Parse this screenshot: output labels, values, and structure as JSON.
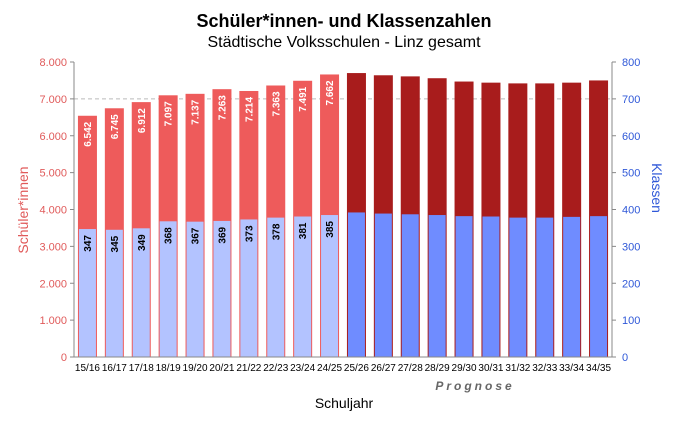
{
  "chart_data": {
    "type": "bar",
    "title": "Schüler*innen- und Klassenzahlen",
    "subtitle": "Städtische Volksschulen - Linz gesamt",
    "xlabel": "Schuljahr",
    "ylabel_left": "Schüler*innen",
    "ylabel_right": "Klassen",
    "annotation": "Prognose",
    "ylim_left": [
      0,
      8000
    ],
    "ylim_right": [
      0,
      800
    ],
    "left_ticks": [
      "0",
      "1.000",
      "2.000",
      "3.000",
      "4.000",
      "5.000",
      "6.000",
      "7.000",
      "8.000"
    ],
    "right_ticks": [
      "0",
      "100",
      "200",
      "300",
      "400",
      "500",
      "600",
      "700",
      "800"
    ],
    "grid": "dashed horizontal at 7.000",
    "categories": [
      "15/16",
      "16/17",
      "17/18",
      "18/19",
      "19/20",
      "20/21",
      "21/22",
      "22/23",
      "23/24",
      "24/25",
      "25/26",
      "26/27",
      "27/28",
      "28/29",
      "29/30",
      "30/31",
      "31/32",
      "32/33",
      "33/34",
      "34/35"
    ],
    "forecast_start_index": 10,
    "series": [
      {
        "axis": "left",
        "values": [
          6542,
          6745,
          6912,
          7097,
          7137,
          7263,
          7214,
          7363,
          7491,
          7662,
          7700,
          7640,
          7610,
          7560,
          7470,
          7440,
          7420,
          7420,
          7440,
          7500
        ],
        "labels": [
          "6.542",
          "6.745",
          "6.912",
          "7.097",
          "7.137",
          "7.263",
          "7.214",
          "7.363",
          "7.491",
          "7.662",
          "",
          "",
          "",
          "",
          "",
          "",
          "",
          "",
          "",
          ""
        ]
      },
      {
        "axis": "right",
        "values": [
          347,
          345,
          349,
          368,
          367,
          369,
          373,
          378,
          381,
          385,
          392,
          389,
          387,
          385,
          382,
          381,
          378,
          378,
          380,
          382
        ],
        "labels": [
          "347",
          "345",
          "349",
          "368",
          "367",
          "369",
          "373",
          "378",
          "381",
          "385",
          "",
          "",
          "",
          "",
          "",
          "",
          "",
          "",
          "",
          ""
        ]
      }
    ],
    "colors": {
      "students_actual": "#ee5b5b",
      "students_forecast": "#a81c1c",
      "classes_actual": "#b3c3ff",
      "classes_forecast": "#6f8cff",
      "left_axis": "#e05a5a",
      "right_axis": "#2f58d8"
    }
  }
}
